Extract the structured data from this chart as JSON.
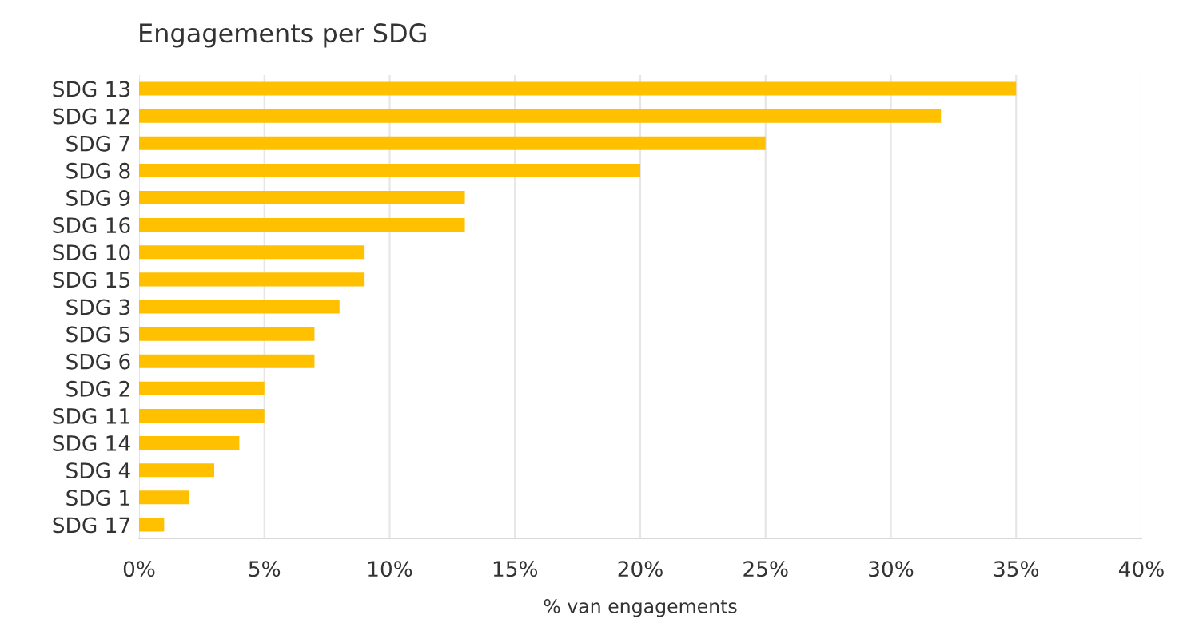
{
  "chart_data": {
    "type": "bar",
    "orientation": "horizontal",
    "title": "Engagements per SDG",
    "xlabel": "% van engagements",
    "categories": [
      "SDG 13",
      "SDG 12",
      "SDG 7",
      "SDG 8",
      "SDG 9",
      "SDG 16",
      "SDG 10",
      "SDG 15",
      "SDG 3",
      "SDG 5",
      "SDG 6",
      "SDG 2",
      "SDG 11",
      "SDG 14",
      "SDG 4",
      "SDG 1",
      "SDG 17"
    ],
    "values": [
      35,
      32,
      25,
      20,
      13,
      13,
      9,
      9,
      8,
      7,
      7,
      5,
      5,
      4,
      3,
      2,
      1
    ],
    "color": "#ffc000",
    "xlim": [
      0,
      40
    ],
    "xticks": [
      {
        "value": 0,
        "label": "0%"
      },
      {
        "value": 5,
        "label": "5%"
      },
      {
        "value": 10,
        "label": "10%"
      },
      {
        "value": 15,
        "label": "15%"
      },
      {
        "value": 20,
        "label": "20%"
      },
      {
        "value": 25,
        "label": "25%"
      },
      {
        "value": 30,
        "label": "30%"
      },
      {
        "value": 35,
        "label": "35%"
      },
      {
        "value": 40,
        "label": "40%"
      }
    ],
    "grid": "x"
  }
}
